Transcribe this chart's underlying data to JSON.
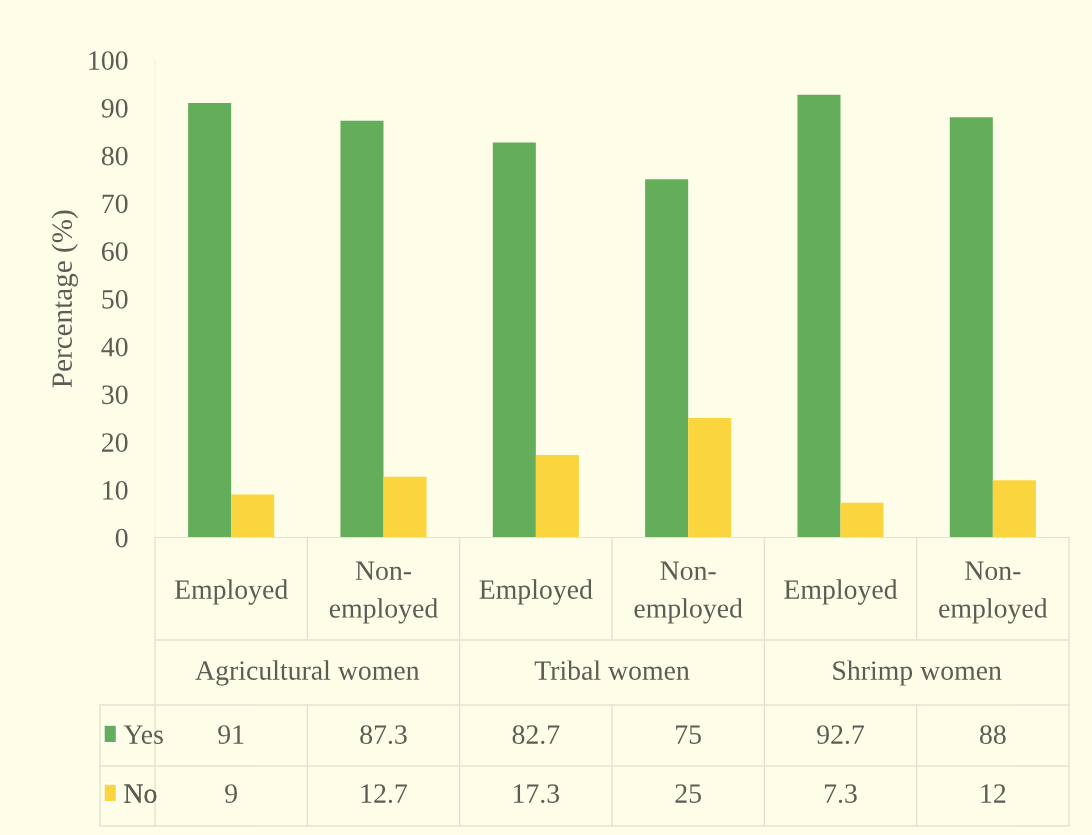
{
  "chart_data": {
    "type": "bar",
    "ylabel": "Percentage (%)",
    "categories": [
      "Employed",
      "Non-employed",
      "Employed",
      "Non-employed",
      "Employed",
      "Non-employed"
    ],
    "annotations": [
      "Agricultural women",
      "Tribal women",
      "Shrimp women"
    ],
    "series": [
      {
        "name": "Yes",
        "color": "#63ad5b",
        "values": [
          91,
          87.3,
          82.7,
          75,
          92.7,
          88
        ]
      },
      {
        "name": "No",
        "color": "#fbd53e",
        "values": [
          9,
          12.7,
          17.3,
          25,
          7.3,
          12
        ]
      }
    ],
    "ylim": [
      0,
      100
    ],
    "yticks": [
      0,
      10,
      20,
      30,
      40,
      50,
      60,
      70,
      80,
      90,
      100
    ],
    "data_labels": true,
    "legend": "bottom left"
  }
}
